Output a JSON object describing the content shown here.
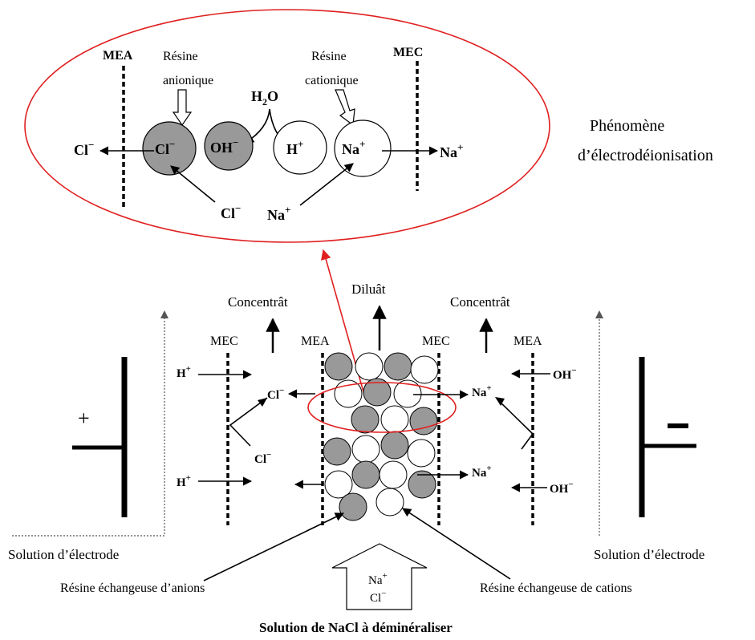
{
  "zoom": {
    "mea": "MEA",
    "mec": "MEC",
    "resin_anion_1": "Résine",
    "resin_anion_2": "anionique",
    "resin_cation_1": "Résine",
    "resin_cation_2": "cationique",
    "water": "H",
    "water_sub": "2",
    "water_o": "O",
    "cl": "Cl",
    "oh": "OH",
    "h": "H",
    "na": "Na",
    "minus": "−",
    "plus": "+"
  },
  "phenomenon": {
    "line1": "Phénomène",
    "line2": "d’électrodéionisation"
  },
  "cell": {
    "concentrate_left": "Concentrât",
    "diluate": "Diluât",
    "concentrate_right": "Concentrât",
    "mec_left": "MEC",
    "mea_left": "MEA",
    "mec_right": "MEC",
    "mea_right": "MEA",
    "h": "H",
    "cl": "Cl",
    "na": "Na",
    "oh": "OH",
    "plus": "+",
    "minus": "−",
    "anode_sign": "+",
    "electrode_solution_left": "Solution d’électrode",
    "electrode_solution_right": "Solution d’électrode",
    "anion_resin": "Résine échangeuse d’anions",
    "cation_resin": "Résine échangeuse de cations",
    "inlet_na": "Na",
    "inlet_cl": "Cl",
    "feed": "Solution de NaCl à déminéraliser"
  },
  "colors": {
    "anion_bead": "#999999",
    "cation_bead": "#ffffff",
    "zoom_ring": "#e02020",
    "ink": "#000000"
  }
}
